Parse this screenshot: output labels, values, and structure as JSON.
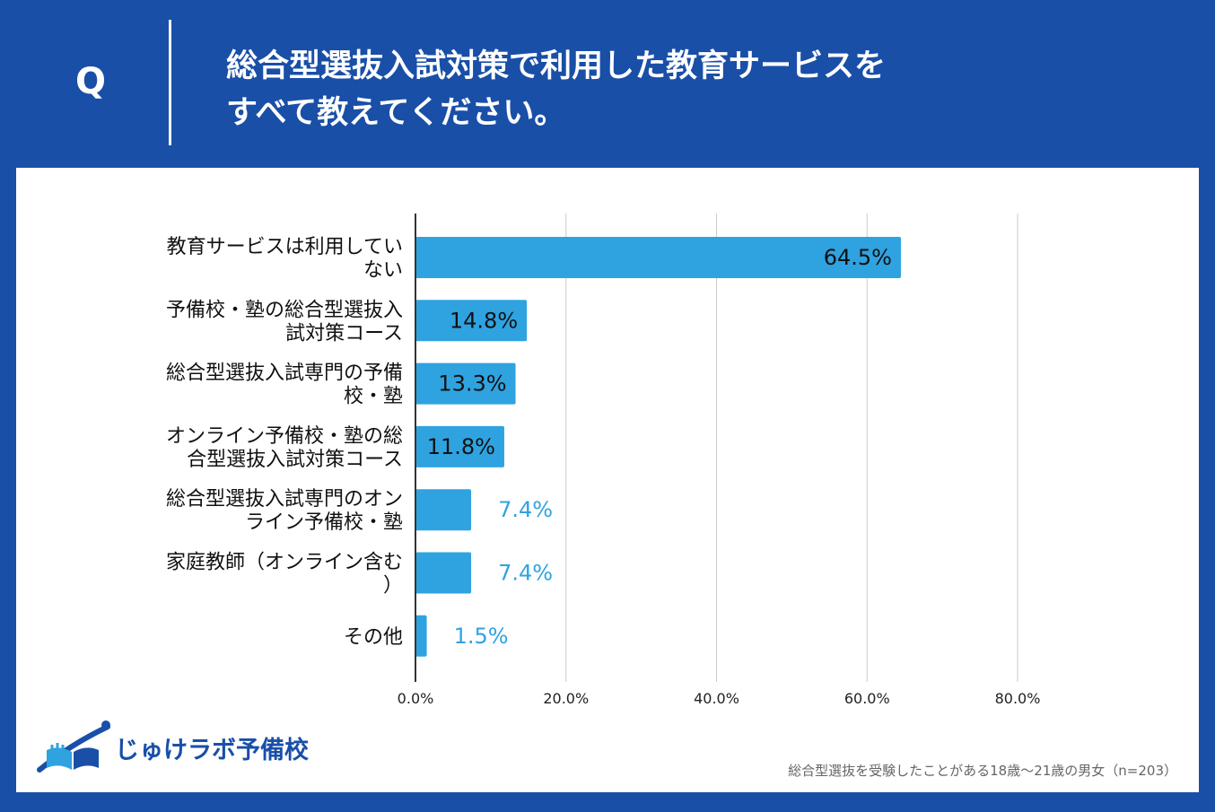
{
  "header": {
    "q_mark": "Q",
    "question_line1": "総合型選抜入試対策で利用した教育サービスを",
    "question_line2": "すべて教えてください。"
  },
  "brand": {
    "name": "じゅけラボ予備校",
    "color": "#1a4fa8",
    "logo_icon": "open-book-swoosh-icon"
  },
  "footnote": "総合型選抜を受験したことがある18歳〜21歳の男女（n=203）",
  "colors": {
    "bar": "#2ea3e0",
    "label_outside": "#2ea3e0",
    "label_inside": "#111111",
    "grid": "#cccccc",
    "axis": "#333333"
  },
  "chart_data": {
    "type": "bar",
    "orientation": "horizontal",
    "title": "",
    "xlabel": "",
    "ylabel": "",
    "xlim": [
      0,
      80
    ],
    "ticks": [
      0,
      20,
      40,
      60,
      80
    ],
    "tick_labels": [
      "0.0%",
      "20.0%",
      "40.0%",
      "60.0%",
      "80.0%"
    ],
    "grid": true,
    "categories": [
      [
        "教育サービスは利用してい",
        "ない"
      ],
      [
        "予備校・塾の総合型選抜入",
        "試対策コース"
      ],
      [
        "総合型選抜入試専門の予備",
        "校・塾"
      ],
      [
        "オンライン予備校・塾の総",
        "合型選抜入試対策コース"
      ],
      [
        "総合型選抜入試専門のオン",
        "ライン予備校・塾"
      ],
      [
        "家庭教師（オンライン含む",
        "）"
      ],
      [
        "その他"
      ]
    ],
    "values": [
      64.5,
      14.8,
      13.3,
      11.8,
      7.4,
      7.4,
      1.5
    ],
    "data_labels": [
      "64.5%",
      "14.8%",
      "13.3%",
      "11.8%",
      "7.4%",
      "7.4%",
      "1.5%"
    ]
  }
}
